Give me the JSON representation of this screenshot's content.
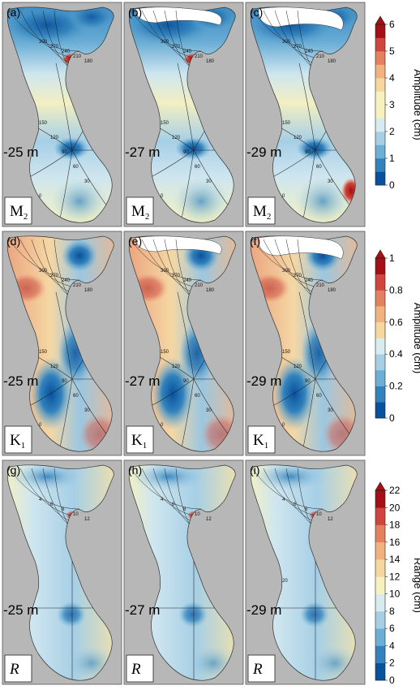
{
  "panels": [
    {
      "label": "(a)",
      "depth": "-25 m",
      "constituent": "M",
      "subscript": "2",
      "italic": false,
      "scheme": "m2a",
      "contour_labels": [
        "300",
        "270",
        "240",
        "210",
        "180",
        "150",
        "120",
        "90",
        "60",
        "30",
        "0"
      ]
    },
    {
      "label": "(b)",
      "depth": "-27 m",
      "constituent": "M",
      "subscript": "2",
      "italic": false,
      "scheme": "m2b",
      "contour_labels": [
        "300",
        "270",
        "240",
        "210",
        "180",
        "150",
        "120",
        "90",
        "60",
        "30",
        "0"
      ]
    },
    {
      "label": "(c)",
      "depth": "-29 m",
      "constituent": "M",
      "subscript": "2",
      "italic": false,
      "scheme": "m2c",
      "contour_labels": [
        "300",
        "270",
        "240",
        "210",
        "180",
        "150",
        "120",
        "90",
        "60",
        "30",
        "0"
      ]
    },
    {
      "label": "(d)",
      "depth": "-25 m",
      "constituent": "K",
      "subscript": "1",
      "italic": false,
      "scheme": "k1",
      "contour_labels": [
        "300",
        "270",
        "240",
        "210",
        "180",
        "150",
        "120",
        "90",
        "60",
        "30",
        "0"
      ]
    },
    {
      "label": "(e)",
      "depth": "-27 m",
      "constituent": "K",
      "subscript": "1",
      "italic": false,
      "scheme": "k1",
      "contour_labels": [
        "300",
        "270",
        "240",
        "210",
        "180",
        "150",
        "120",
        "90",
        "60",
        "30",
        "0"
      ]
    },
    {
      "label": "(f)",
      "depth": "-29 m",
      "constituent": "K",
      "subscript": "1",
      "italic": false,
      "scheme": "k1",
      "contour_labels": [
        "300",
        "270",
        "240",
        "210",
        "180",
        "150",
        "120",
        "90",
        "60",
        "30",
        "0"
      ]
    },
    {
      "label": "(g)",
      "depth": "-25 m",
      "constituent": "R",
      "subscript": "",
      "italic": true,
      "scheme": "r",
      "contour_labels": [
        "4",
        "6",
        "8",
        "10",
        "12"
      ]
    },
    {
      "label": "(h)",
      "depth": "-27 m",
      "constituent": "R",
      "subscript": "",
      "italic": true,
      "scheme": "r",
      "contour_labels": [
        "4",
        "6",
        "8",
        "10",
        "12"
      ]
    },
    {
      "label": "(i)",
      "depth": "-29 m",
      "constituent": "R",
      "subscript": "",
      "italic": true,
      "scheme": "r",
      "contour_labels": [
        "4",
        "6",
        "8",
        "10",
        "12",
        "20"
      ]
    }
  ],
  "colorbars": [
    {
      "title": "Amplitude (cm)",
      "ticks": [
        "0",
        "1",
        "2",
        "3",
        "4",
        "5",
        "6"
      ],
      "max": 6
    },
    {
      "title": "Amplitude (cm)",
      "ticks": [
        "0",
        "0.2",
        "0.4",
        "0.6",
        "0.8",
        "1"
      ],
      "max": 1
    },
    {
      "title": "Range (cm)",
      "ticks": [
        "0",
        "2",
        "4",
        "6",
        "8",
        "10",
        "12",
        "14",
        "16",
        "18",
        "20",
        "22"
      ],
      "max": 22
    }
  ],
  "colors": {
    "background_gray": "#b7b7b7",
    "land_white": "#ffffff",
    "ramp": [
      "#08519c",
      "#3182bd",
      "#6baed6",
      "#a6cfe6",
      "#d8ecf0",
      "#f6f2bd",
      "#f7d79d",
      "#f2b27f",
      "#e4805e",
      "#d0453e",
      "#a50f15"
    ]
  }
}
